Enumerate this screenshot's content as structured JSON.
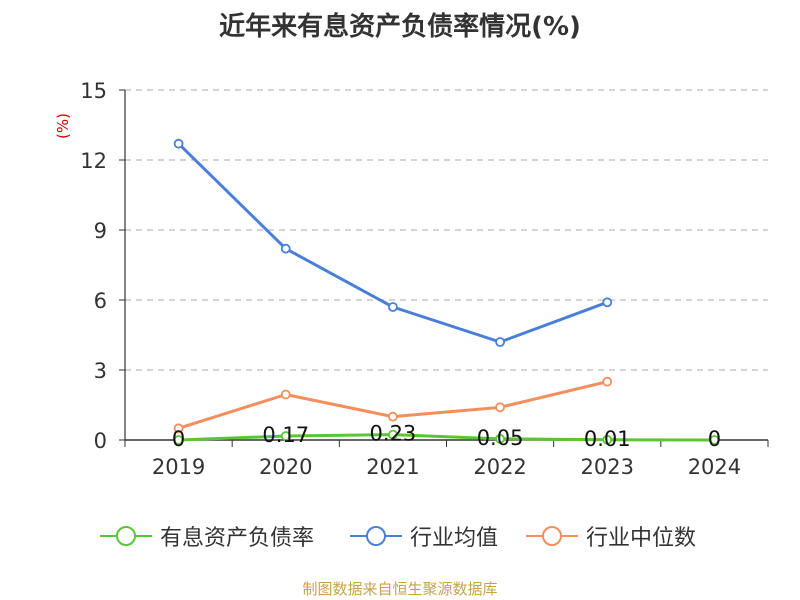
{
  "chart_data": {
    "type": "line",
    "title": "近年来有息资产负债率情况(%)",
    "ylabel": "(%)",
    "ylim": [
      0,
      15
    ],
    "yticks": [
      0,
      3,
      6,
      9,
      12,
      15
    ],
    "categories": [
      "2019",
      "2020",
      "2021",
      "2022",
      "2023",
      "2024"
    ],
    "grid": true,
    "legend_position": "bottom",
    "series": [
      {
        "name": "有息资产负债率",
        "color": "#5cc535",
        "values": [
          0,
          0.17,
          0.23,
          0.05,
          0.01,
          0
        ],
        "data_labels": [
          "0",
          "0.17",
          "0.23",
          "0.05",
          "0.01",
          "0"
        ]
      },
      {
        "name": "行业均值",
        "color": "#4a7fd8",
        "values": [
          12.7,
          8.2,
          5.7,
          4.2,
          5.9,
          null
        ]
      },
      {
        "name": "行业中位数",
        "color": "#f28f5c",
        "values": [
          0.5,
          1.95,
          1.0,
          1.4,
          2.5,
          null
        ]
      }
    ]
  },
  "source": "制图数据来自恒生聚源数据库"
}
